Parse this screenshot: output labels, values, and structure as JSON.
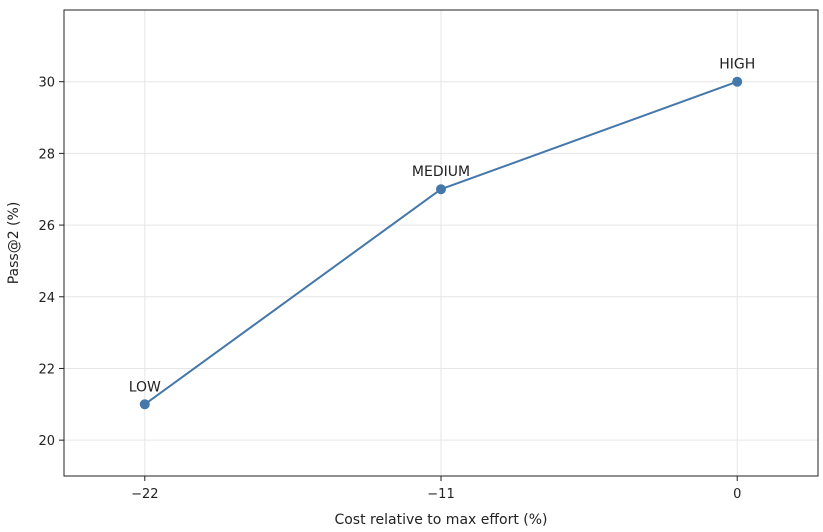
{
  "chart_data": {
    "type": "line",
    "title": "",
    "xlabel": "Cost relative to max effort (%)",
    "ylabel": "Pass@2 (%)",
    "x": [
      -22,
      -11,
      0
    ],
    "series": [
      {
        "values": [
          21,
          27,
          30
        ],
        "point_labels": [
          "LOW",
          "MEDIUM",
          "HIGH"
        ],
        "color": "#4477aa"
      }
    ],
    "xlim": [
      -25,
      3
    ],
    "ylim": [
      19,
      32
    ],
    "xticks": [
      -22,
      -11,
      0
    ],
    "xtick_labels": [
      "−22",
      "−11",
      "0"
    ],
    "yticks": [
      20,
      22,
      24,
      26,
      28,
      30
    ],
    "ytick_labels": [
      "20",
      "22",
      "24",
      "26",
      "28",
      "30"
    ],
    "grid": true,
    "markers": true
  }
}
